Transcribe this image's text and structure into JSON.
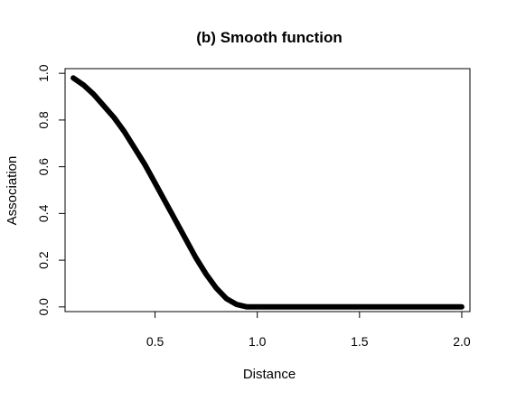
{
  "chart_data": {
    "type": "line",
    "title": "(b) Smooth function",
    "xlabel": "Distance",
    "ylabel": "Association",
    "xlim": [
      0.06,
      2.04
    ],
    "ylim": [
      -0.02,
      1.02
    ],
    "x_ticks": [
      0.5,
      1.0,
      1.5,
      2.0
    ],
    "x_tick_labels": [
      "0.5",
      "1.0",
      "1.5",
      "2.0"
    ],
    "y_ticks": [
      0.0,
      0.2,
      0.4,
      0.6,
      0.8,
      1.0
    ],
    "y_tick_labels": [
      "0.0",
      "0.2",
      "0.4",
      "0.6",
      "0.8",
      "1.0"
    ],
    "grid": false,
    "legend": "none",
    "line_color": "#000000",
    "series": [
      {
        "x": [
          0.1,
          0.15,
          0.2,
          0.25,
          0.3,
          0.35,
          0.4,
          0.45,
          0.5,
          0.55,
          0.6,
          0.65,
          0.7,
          0.75,
          0.8,
          0.85,
          0.9,
          0.95,
          1.0,
          1.1,
          1.2,
          1.3,
          1.4,
          1.5,
          1.6,
          1.7,
          1.8,
          1.9,
          2.0
        ],
        "y": [
          0.98,
          0.95,
          0.91,
          0.86,
          0.81,
          0.75,
          0.68,
          0.61,
          0.53,
          0.45,
          0.37,
          0.29,
          0.21,
          0.14,
          0.08,
          0.035,
          0.01,
          0.0,
          0.0,
          0.0,
          0.0,
          0.0,
          0.0,
          0.0,
          0.0,
          0.0,
          0.0,
          0.0,
          0.0
        ]
      }
    ]
  }
}
